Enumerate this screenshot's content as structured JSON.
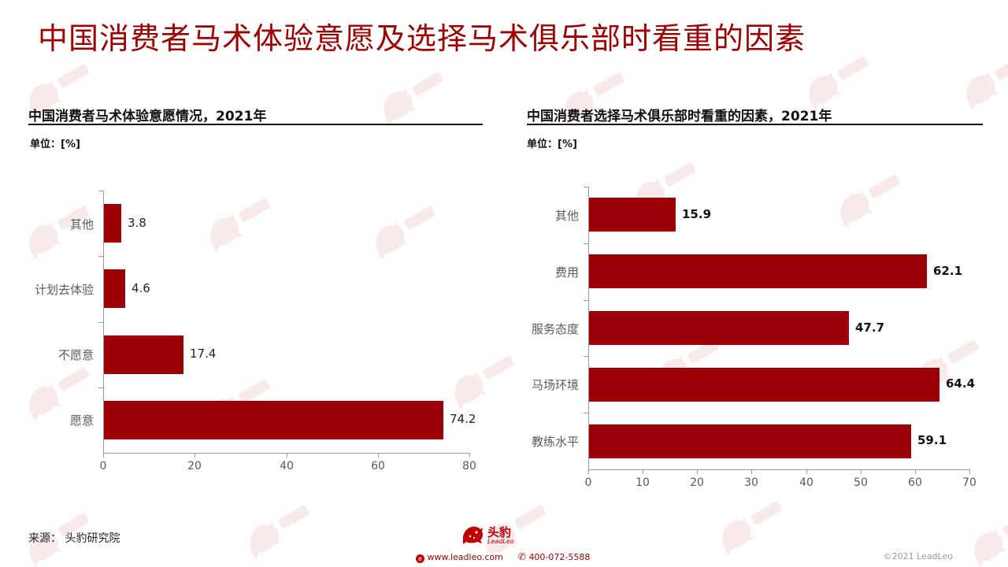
{
  "slide": {
    "title": "中国消费者马术体验意愿及选择马术俱乐部时看重的因素"
  },
  "left_panel": {
    "title": "中国消费者马术体验意愿情况，2021年",
    "unit_label": "单位：[%]"
  },
  "right_panel": {
    "title": "中国消费者选择马术俱乐部时看重的因素，2021年",
    "unit_label": "单位：[%]"
  },
  "footer": {
    "source": "来源：  头豹研究院",
    "brand_cn": "头豹",
    "brand_en": "LeadLeo",
    "website": "www.leadleo.com",
    "phone": "400-072-5588",
    "copyright": "©2021 LeadLeo"
  },
  "colors": {
    "bar": "#9c0006",
    "title": "#a00000",
    "axis": "#9a9a9a"
  },
  "icons": [
    "leopard-logo-icon",
    "web-icon",
    "phone-icon",
    "leopard-watermark-icon"
  ],
  "chart_data": [
    {
      "type": "bar",
      "orientation": "horizontal",
      "categories": [
        "其他",
        "计划去体验",
        "不愿意",
        "愿意"
      ],
      "values": [
        3.8,
        4.6,
        17.4,
        74.2
      ],
      "xlim": [
        0,
        80
      ],
      "xticks": [
        0,
        20,
        40,
        60,
        80
      ],
      "grid": false,
      "legend": "none"
    },
    {
      "type": "bar",
      "orientation": "horizontal",
      "categories": [
        "其他",
        "费用",
        "服务态度",
        "马场环境",
        "教练水平"
      ],
      "values": [
        15.9,
        62.1,
        47.7,
        64.4,
        59.1
      ],
      "xlim": [
        0,
        70
      ],
      "xticks": [
        0,
        10,
        20,
        30,
        40,
        50,
        60,
        70
      ],
      "grid": false,
      "legend": "none"
    }
  ]
}
